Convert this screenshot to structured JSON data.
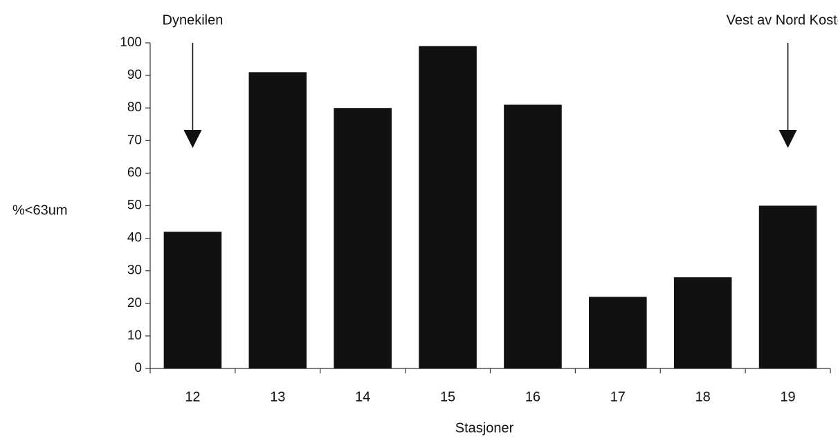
{
  "chart_data": {
    "type": "bar",
    "title": "",
    "xlabel": "Stasjoner",
    "ylabel": "%<63um",
    "categories": [
      "12",
      "13",
      "14",
      "15",
      "16",
      "17",
      "18",
      "19"
    ],
    "values": [
      42,
      91,
      80,
      99,
      81,
      22,
      28,
      50
    ],
    "ylim": [
      0,
      100
    ],
    "yticks": [
      0,
      10,
      20,
      30,
      40,
      50,
      60,
      70,
      80,
      90,
      100
    ],
    "grid": false,
    "legend": "none",
    "bar_color": "#111111",
    "annotations": [
      {
        "text": "Dynekilen",
        "category": "12",
        "marker": "down-arrow"
      },
      {
        "text": "Vest av Nord Koster",
        "category": "19",
        "marker": "down-arrow"
      }
    ]
  }
}
